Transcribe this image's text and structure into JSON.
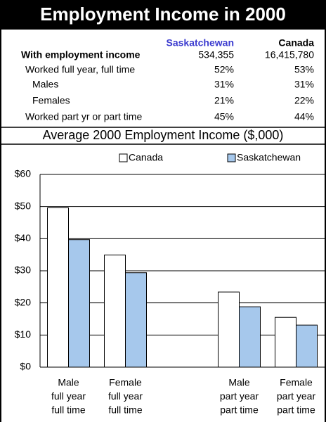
{
  "header": {
    "title": "Employment Income in 2000"
  },
  "table": {
    "columns": [
      "Saskatchewan",
      "Canada"
    ],
    "rows": [
      {
        "label": "With employment income",
        "values": [
          "534,355",
          "16,415,780"
        ]
      },
      {
        "label": "Worked full year, full time",
        "values": [
          "52%",
          "53%"
        ]
      },
      {
        "label": "Males",
        "values": [
          "31%",
          "31%"
        ]
      },
      {
        "label": "Females",
        "values": [
          "21%",
          "22%"
        ]
      },
      {
        "label": "Worked part yr or part time",
        "values": [
          "45%",
          "44%"
        ]
      }
    ]
  },
  "chart_data": {
    "type": "bar",
    "title": "Average 2000 Employment Income ($,000)",
    "categories": [
      [
        "Male",
        "full year",
        "full time"
      ],
      [
        "Female",
        "full year",
        "full time"
      ],
      null,
      [
        "Male",
        "part year",
        "part time"
      ],
      [
        "Female",
        "part year",
        "part time"
      ]
    ],
    "series": [
      {
        "name": "Canada",
        "color": "#ffffff",
        "values": [
          49.6,
          34.9,
          null,
          23.4,
          15.5
        ]
      },
      {
        "name": "Saskatchewan",
        "color": "#a6c8ec",
        "values": [
          39.7,
          29.4,
          null,
          18.8,
          13.1
        ]
      }
    ],
    "ylim": [
      0,
      60
    ],
    "yticks": [
      {
        "value": 0,
        "label": "$0"
      },
      {
        "value": 10,
        "label": "$10"
      },
      {
        "value": 20,
        "label": "$20"
      },
      {
        "value": 30,
        "label": "$30"
      },
      {
        "value": 40,
        "label": "$40"
      },
      {
        "value": 50,
        "label": "$50"
      },
      {
        "value": 60,
        "label": "$60"
      }
    ],
    "grid": true,
    "legend": "top"
  }
}
